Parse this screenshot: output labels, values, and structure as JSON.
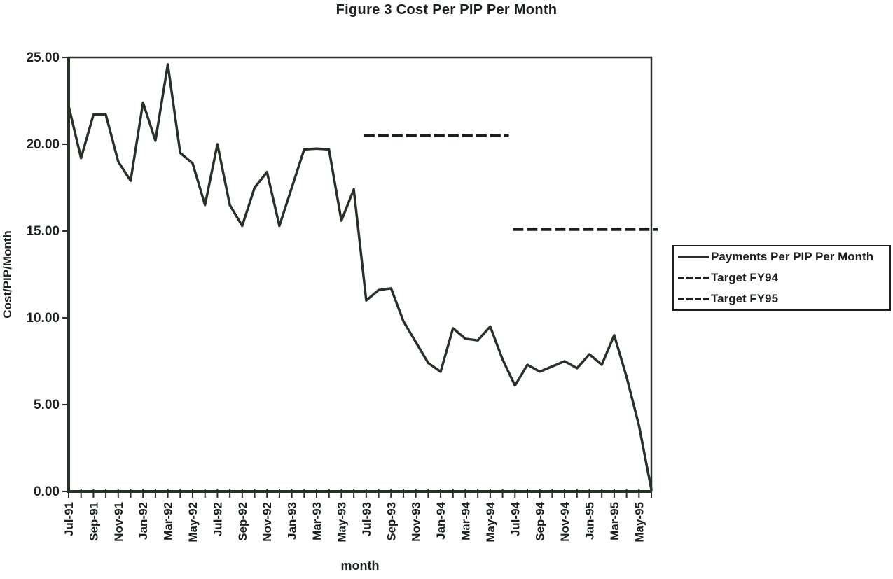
{
  "title": "Figure 3 Cost Per PIP Per Month",
  "y_axis": {
    "title": "Cost/PIP/Month",
    "tick_labels": [
      "0.00",
      "5.00",
      "10.00",
      "15.00",
      "20.00",
      "25.00"
    ]
  },
  "x_axis": {
    "title": "month",
    "label_every": 2
  },
  "legend": {
    "items": [
      {
        "label": "Payments Per PIP Per Month",
        "style": "solid"
      },
      {
        "label": "Target FY94",
        "style": "dashed"
      },
      {
        "label": "Target FY95",
        "style": "dashed"
      }
    ]
  },
  "colors": {
    "ink": "#2a332a",
    "target_ink": "#1c221c",
    "text": "#1d231d"
  },
  "chart_data": {
    "type": "line",
    "title": "Figure 3 Cost Per PIP Per Month",
    "xlabel": "month",
    "ylabel": "Cost/PIP/Month",
    "ylim": [
      0,
      25
    ],
    "y_tick_step": 5,
    "grid": false,
    "legend_position": "right",
    "categories": [
      "Jul-91",
      "Aug-91",
      "Sep-91",
      "Oct-91",
      "Nov-91",
      "Dec-91",
      "Jan-92",
      "Feb-92",
      "Mar-92",
      "Apr-92",
      "May-92",
      "Jun-92",
      "Jul-92",
      "Aug-92",
      "Sep-92",
      "Oct-92",
      "Nov-92",
      "Dec-92",
      "Jan-93",
      "Feb-93",
      "Mar-93",
      "Apr-93",
      "May-93",
      "Jun-93",
      "Jul-93",
      "Aug-93",
      "Sep-93",
      "Oct-93",
      "Nov-93",
      "Dec-93",
      "Jan-94",
      "Feb-94",
      "Mar-94",
      "Apr-94",
      "May-94",
      "Jun-94",
      "Jul-94",
      "Aug-94",
      "Sep-94",
      "Oct-94",
      "Nov-94",
      "Dec-94",
      "Jan-95",
      "Feb-95",
      "Mar-95",
      "Apr-95",
      "May-95",
      "Jun-95"
    ],
    "series": [
      {
        "name": "Payments Per PIP Per Month",
        "kind": "data",
        "values": [
          22.2,
          19.2,
          21.7,
          21.7,
          19.0,
          17.9,
          22.4,
          20.2,
          24.6,
          19.5,
          18.9,
          16.5,
          20.0,
          16.5,
          15.3,
          17.5,
          18.4,
          15.3,
          17.5,
          19.7,
          19.75,
          19.7,
          15.6,
          17.4,
          11.0,
          11.6,
          11.7,
          9.8,
          8.6,
          7.4,
          6.9,
          9.4,
          8.8,
          8.7,
          9.5,
          7.6,
          6.1,
          7.3,
          6.9,
          7.2,
          7.5,
          7.1,
          7.9,
          7.3,
          9.0,
          6.6,
          3.8,
          0.1
        ]
      },
      {
        "name": "Target FY94",
        "kind": "target_line",
        "value": 20.5,
        "start": "Jul-93",
        "end": "Jun-94"
      },
      {
        "name": "Target FY95",
        "kind": "target_line",
        "value": 15.1,
        "start": "Jul-94",
        "end": "Jun-95"
      }
    ]
  }
}
